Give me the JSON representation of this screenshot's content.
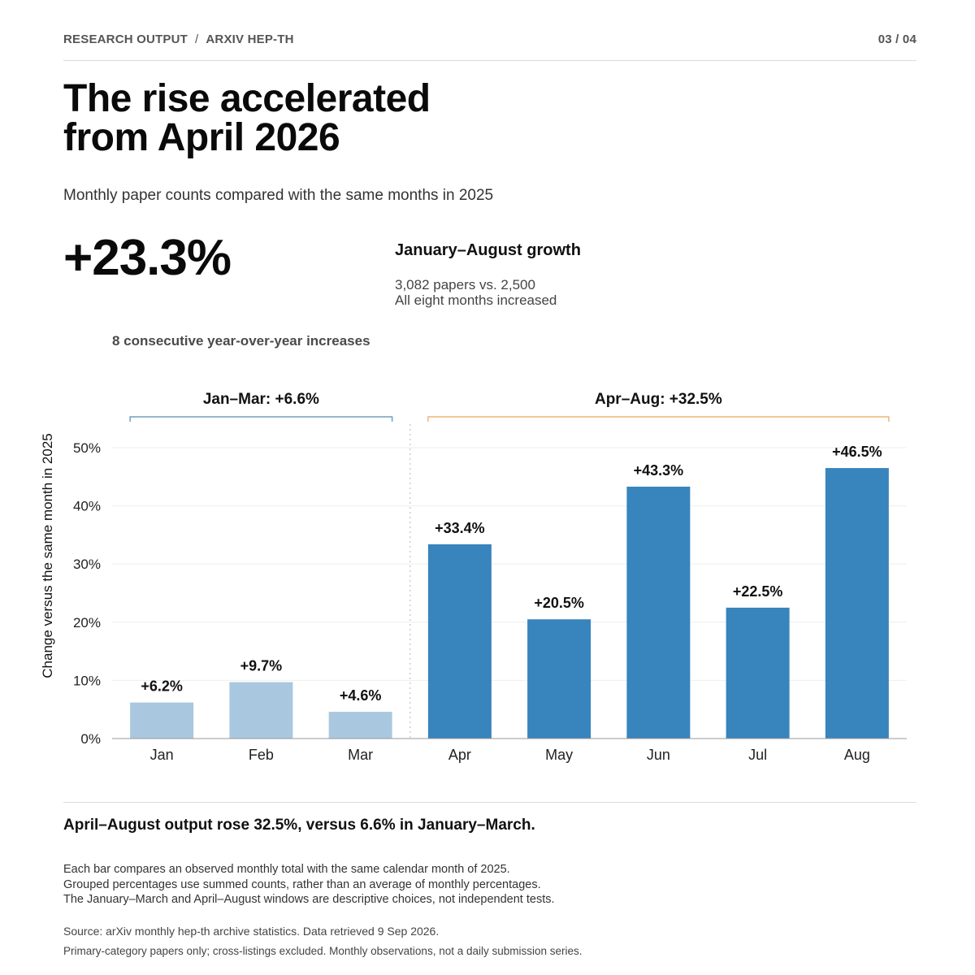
{
  "header": {
    "breadcrumb": [
      "RESEARCH OUTPUT",
      "ARXIV HEP-TH"
    ],
    "separator": "/",
    "page_indicator": "03 / 04"
  },
  "title_lines": [
    "The rise accelerated",
    "from April 2026"
  ],
  "subtitle": "Monthly paper counts compared with the same months in 2025",
  "kpi": {
    "value": "+23.3%",
    "label": "January–August growth",
    "detail_lines": [
      "3,082 papers vs. 2,500",
      "All eight months increased"
    ]
  },
  "streak_note": "8 consecutive year-over-year increases",
  "chart_data": {
    "type": "bar",
    "categories": [
      "Jan",
      "Feb",
      "Mar",
      "Apr",
      "May",
      "Jun",
      "Jul",
      "Aug"
    ],
    "values": [
      6.2,
      9.7,
      4.6,
      33.4,
      20.5,
      43.3,
      22.5,
      46.5
    ],
    "value_labels": [
      "+6.6%"
    ],
    "data_labels": [
      "+6.2%",
      "+9.7%",
      "+4.6%",
      "+33.4%",
      "+20.5%",
      "+43.3%",
      "+22.5%",
      "+46.5%"
    ],
    "ylabel": "Change versus the same month in 2025",
    "ylim": [
      0,
      50
    ],
    "yticks": [
      0,
      10,
      20,
      30,
      40,
      50
    ],
    "ytick_labels": [
      "0%",
      "10%",
      "20%",
      "30%",
      "40%",
      "50%"
    ],
    "grid": true,
    "groups": [
      {
        "label": "Jan–Mar: +6.6%",
        "categories": [
          "Jan",
          "Feb",
          "Mar"
        ],
        "color": "#a9c8df",
        "bracket_color": "#6f9fc2"
      },
      {
        "label": "Apr–Aug: +32.5%",
        "categories": [
          "Apr",
          "May",
          "Jun",
          "Jul",
          "Aug"
        ],
        "color": "#3884bd",
        "bracket_color": "#f0b47a"
      }
    ]
  },
  "takeaway": "April–August output rose 32.5%, versus 6.6% in January–March.",
  "notes": [
    "Each bar compares an observed monthly total with the same calendar month of 2025.",
    "Grouped percentages use summed counts, rather than an average of monthly percentages.",
    "The January–March and April–August windows are descriptive choices, not independent tests."
  ],
  "source": "Source: arXiv monthly hep-th archive statistics. Data retrieved 9 Sep 2026.",
  "scope": "Primary-category papers only; cross-listings excluded. Monthly observations, not a daily submission series."
}
